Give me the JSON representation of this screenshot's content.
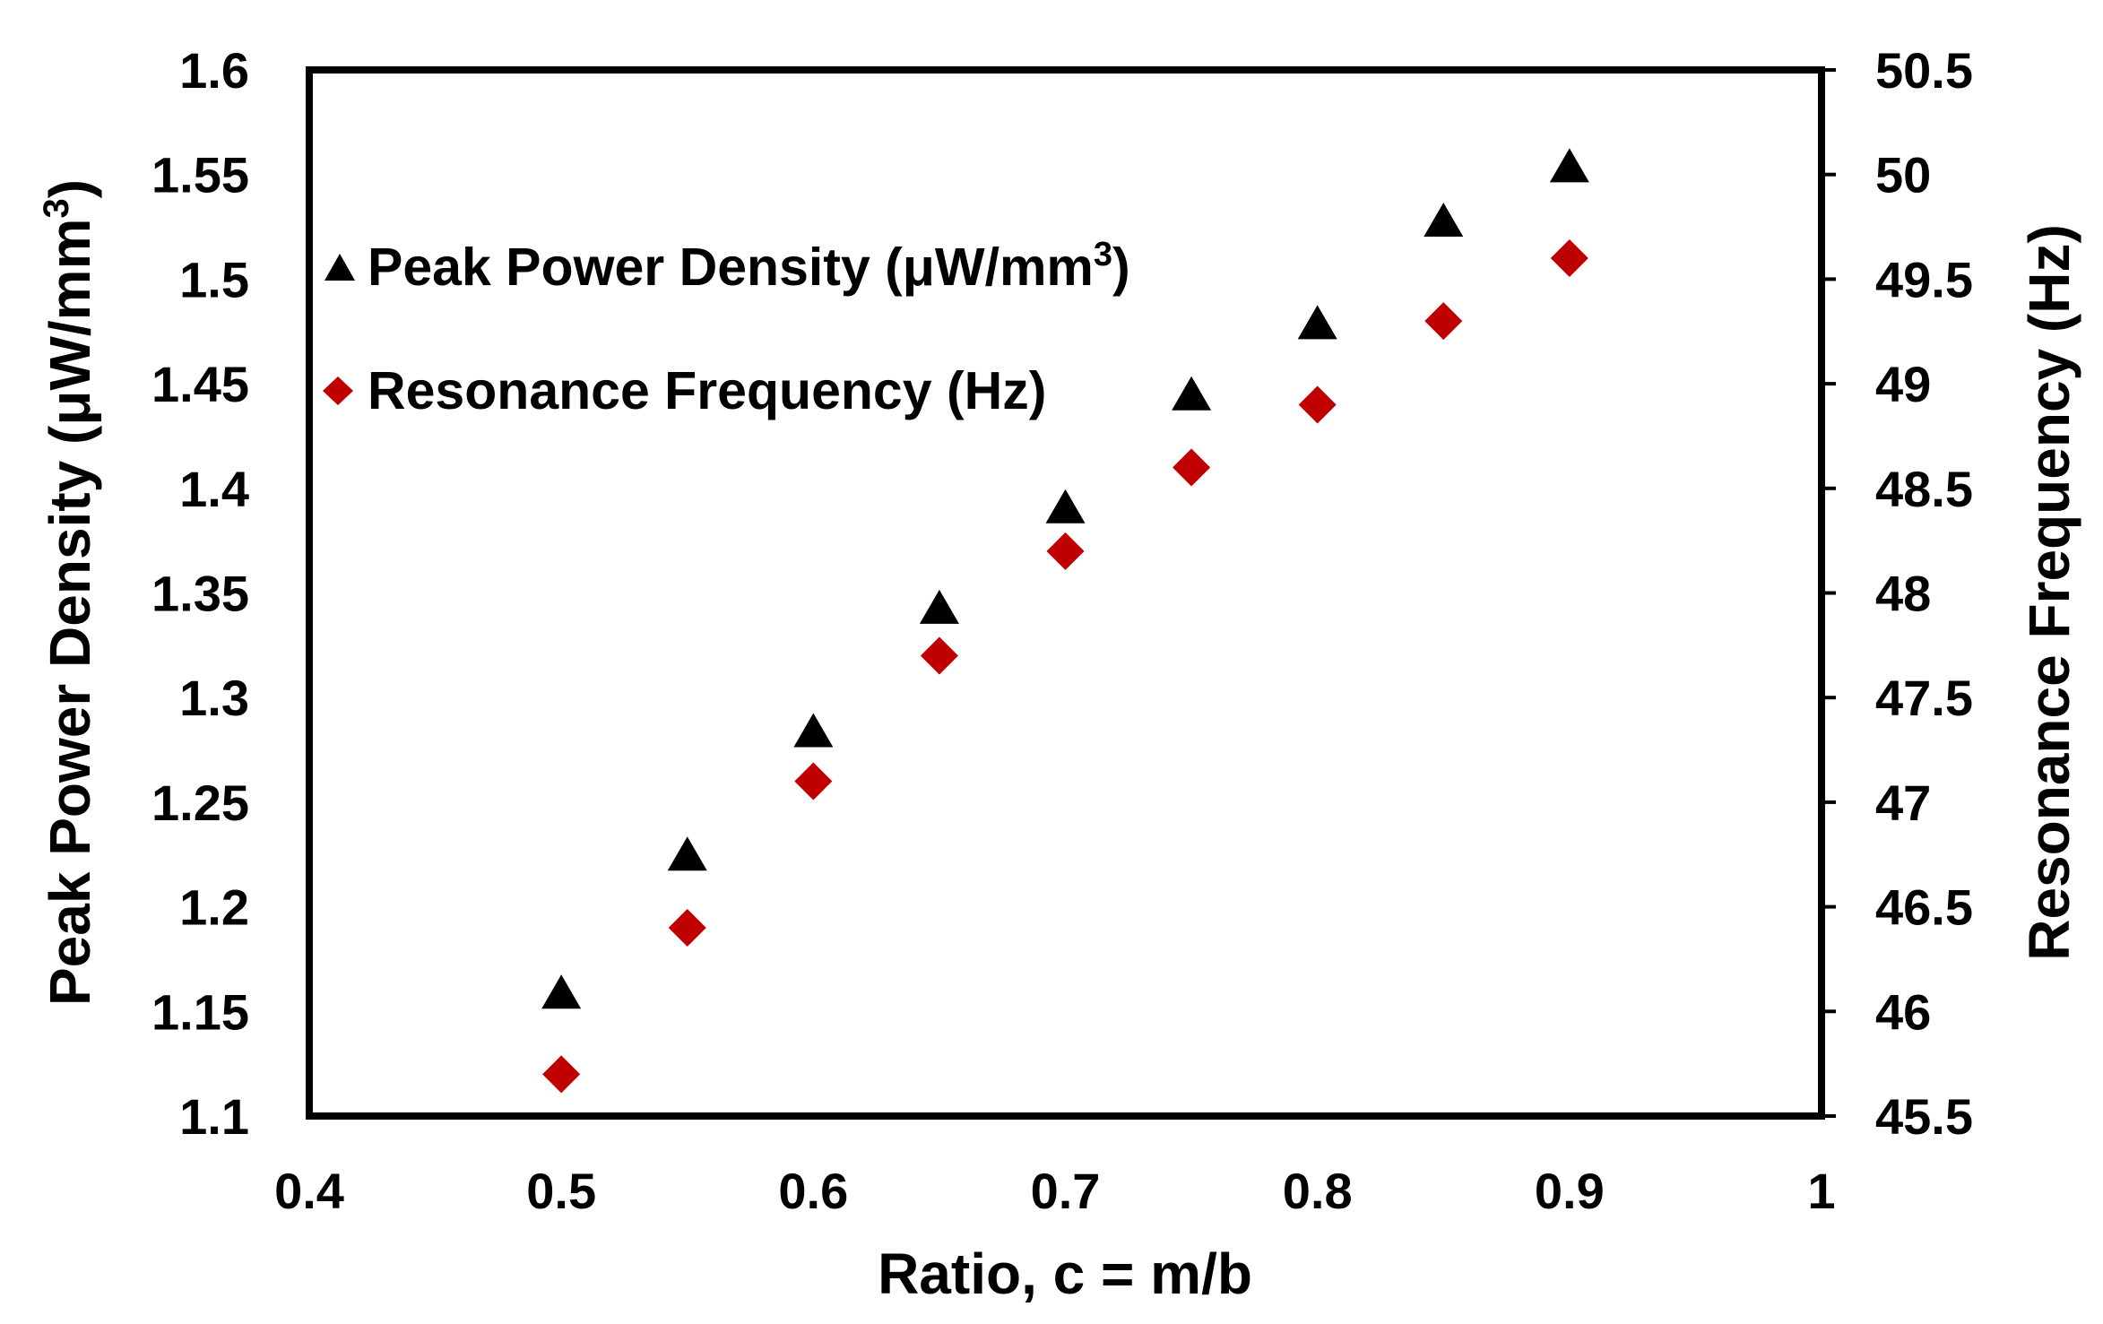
{
  "chart_data": {
    "type": "scatter",
    "xlabel": "Ratio, c = m/b",
    "ylabel": "Peak Power Density (μW/mm",
    "ylabel_sup": "3",
    "ylabel_close": ")",
    "y2label": "Resonance Frequency (Hz)",
    "xlim": [
      0.4,
      1.0
    ],
    "ylim": [
      1.1,
      1.6
    ],
    "y2lim": [
      45.5,
      50.5
    ],
    "grid": false,
    "legend_position": "upper-left",
    "x_ticks": [
      "0.4",
      "0.5",
      "0.6",
      "0.7",
      "0.8",
      "0.9",
      "1"
    ],
    "y_ticks": [
      "1.1",
      "1.15",
      "1.2",
      "1.25",
      "1.3",
      "1.35",
      "1.4",
      "1.45",
      "1.5",
      "1.55",
      "1.6"
    ],
    "y2_ticks": [
      "45.5",
      "46",
      "46.5",
      "47",
      "47.5",
      "48",
      "48.5",
      "49",
      "49.5",
      "50",
      "50.5"
    ],
    "series": [
      {
        "name": "Peak Power Density  (μW/mm",
        "name_sup": "3",
        "name_close": ")",
        "axis": "left",
        "marker": "triangle",
        "color": "#000000",
        "x": [
          0.5,
          0.55,
          0.6,
          0.65,
          0.7,
          0.75,
          0.8,
          0.85,
          0.9
        ],
        "y": [
          1.159,
          1.225,
          1.284,
          1.343,
          1.391,
          1.445,
          1.479,
          1.528,
          1.554
        ]
      },
      {
        "name": "Resonance Frequency (Hz)",
        "axis": "right",
        "marker": "diamond",
        "color": "#c00000",
        "x": [
          0.5,
          0.55,
          0.6,
          0.65,
          0.7,
          0.75,
          0.8,
          0.85,
          0.9
        ],
        "y": [
          45.7,
          46.4,
          47.1,
          47.7,
          48.2,
          48.6,
          48.9,
          49.3,
          49.6
        ]
      }
    ]
  }
}
